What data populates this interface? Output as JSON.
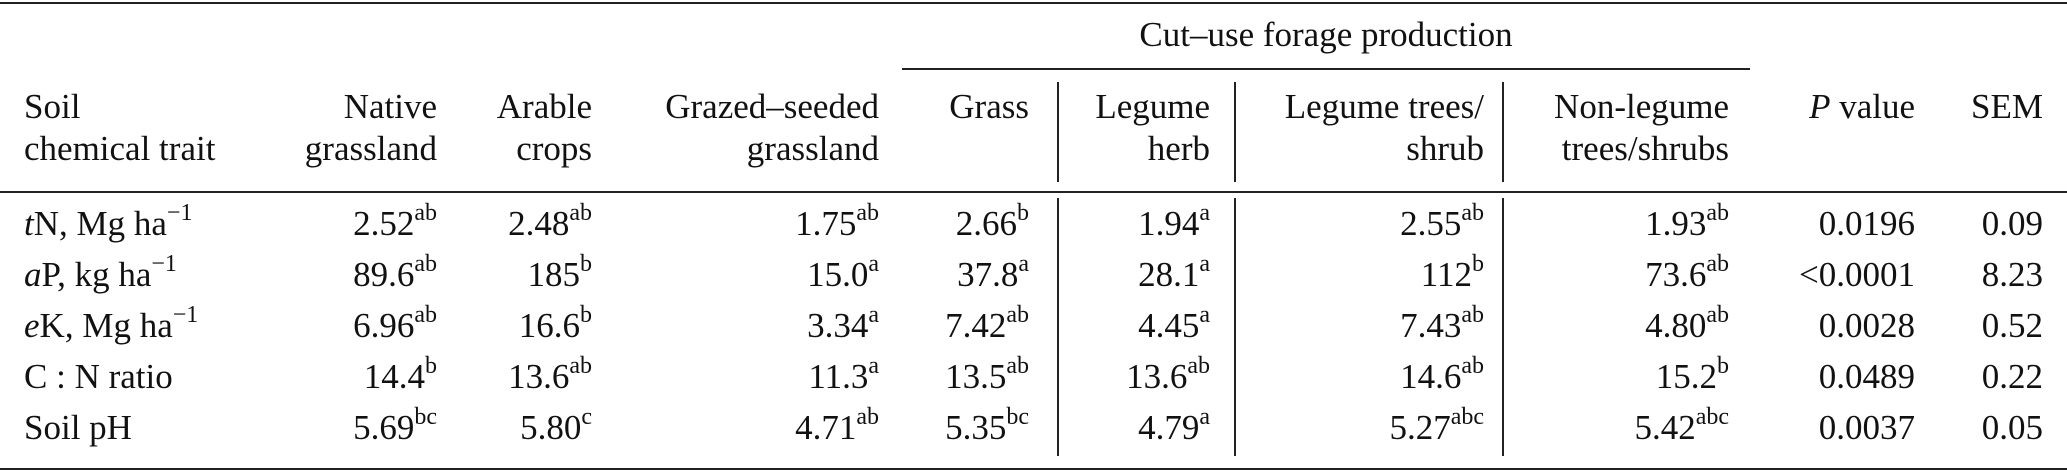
{
  "header": {
    "group_label": "Cut–use forage production",
    "col_trait_line1": "Soil",
    "col_trait_line2": "chemical trait",
    "col_native_line1": "Native",
    "col_native_line2": "grassland",
    "col_arable_line1": "Arable",
    "col_arable_line2": "crops",
    "col_grazed_line1": "Grazed–seeded",
    "col_grazed_line2": "grassland",
    "col_grass": "Grass",
    "col_legherb_line1": "Legume",
    "col_legherb_line2": "herb",
    "col_legtree_line1": "Legume trees/",
    "col_legtree_line2": "shrub",
    "col_nonleg_line1": "Non-legume",
    "col_nonleg_line2": "trees/shrubs",
    "col_p_italic": "P",
    "col_p_rest": " value",
    "col_sem": "SEM"
  },
  "rows": [
    {
      "trait_ital": "t",
      "trait_rest": "N, Mg ha",
      "trait_sup": "−1",
      "native": "2.52",
      "native_sup": "ab",
      "arable": "2.48",
      "arable_sup": "ab",
      "grazed": "1.75",
      "grazed_sup": "ab",
      "grass": "2.66",
      "grass_sup": "b",
      "legherb": "1.94",
      "legherb_sup": "a",
      "legtree": "2.55",
      "legtree_sup": "ab",
      "nonleg": "1.93",
      "nonleg_sup": "ab",
      "p": "0.0196",
      "sem": "0.09"
    },
    {
      "trait_ital": "a",
      "trait_rest": "P, kg ha",
      "trait_sup": "−1",
      "native": "89.6",
      "native_sup": "ab",
      "arable": "185",
      "arable_sup": "b",
      "grazed": "15.0",
      "grazed_sup": "a",
      "grass": "37.8",
      "grass_sup": "a",
      "legherb": "28.1",
      "legherb_sup": "a",
      "legtree": "112",
      "legtree_sup": "b",
      "nonleg": "73.6",
      "nonleg_sup": "ab",
      "p": "<0.0001",
      "sem": "8.23"
    },
    {
      "trait_ital": "e",
      "trait_rest": "K, Mg ha",
      "trait_sup": "−1",
      "native": "6.96",
      "native_sup": "ab",
      "arable": "16.6",
      "arable_sup": "b",
      "grazed": "3.34",
      "grazed_sup": "a",
      "grass": "7.42",
      "grass_sup": "ab",
      "legherb": "4.45",
      "legherb_sup": "a",
      "legtree": "7.43",
      "legtree_sup": "ab",
      "nonleg": "4.80",
      "nonleg_sup": "ab",
      "p": "0.0028",
      "sem": "0.52"
    },
    {
      "trait_ital": "",
      "trait_rest": "C : N ratio",
      "trait_sup": "",
      "native": "14.4",
      "native_sup": "b",
      "arable": "13.6",
      "arable_sup": "ab",
      "grazed": "11.3",
      "grazed_sup": "a",
      "grass": "13.5",
      "grass_sup": "ab",
      "legherb": "13.6",
      "legherb_sup": "ab",
      "legtree": "14.6",
      "legtree_sup": "ab",
      "nonleg": "15.2",
      "nonleg_sup": "b",
      "p": "0.0489",
      "sem": "0.22"
    },
    {
      "trait_ital": "",
      "trait_rest": "Soil pH",
      "trait_sup": "",
      "native": "5.69",
      "native_sup": "bc",
      "arable": "5.80",
      "arable_sup": "c",
      "grazed": "4.71",
      "grazed_sup": "ab",
      "grass": "5.35",
      "grass_sup": "bc",
      "legherb": "4.79",
      "legherb_sup": "a",
      "legtree": "5.27",
      "legtree_sup": "abc",
      "nonleg": "5.42",
      "nonleg_sup": "abc",
      "p": "0.0037",
      "sem": "0.05"
    }
  ]
}
